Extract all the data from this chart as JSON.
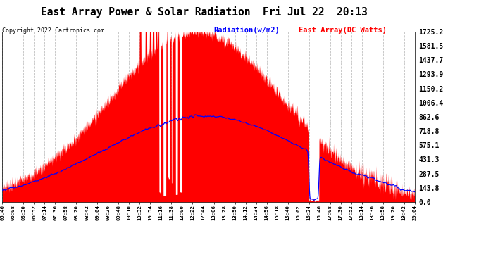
{
  "title": "East Array Power & Solar Radiation  Fri Jul 22  20:13",
  "copyright": "Copyright 2022 Cartronics.com",
  "legend_radiation": "Radiation(w/m2)",
  "legend_east": "East Array(DC Watts)",
  "yticks": [
    0.0,
    143.8,
    287.5,
    431.3,
    575.1,
    718.8,
    862.6,
    1006.4,
    1150.2,
    1293.9,
    1437.7,
    1581.5,
    1725.2
  ],
  "ymax": 1725.2,
  "ymin": 0.0,
  "bg_color": "#ffffff",
  "plot_bg_color": "#ffffff",
  "grid_color": "#c0c0c0",
  "radiation_color": "#0000ff",
  "east_fill_color": "#ff0000",
  "title_color": "#000000",
  "copyright_color": "#000000",
  "xtick_labels": [
    "05:46",
    "06:08",
    "06:30",
    "06:52",
    "07:14",
    "07:36",
    "07:58",
    "08:20",
    "08:42",
    "09:04",
    "09:26",
    "09:48",
    "10:10",
    "10:32",
    "10:54",
    "11:16",
    "11:38",
    "12:00",
    "12:22",
    "12:44",
    "13:06",
    "13:28",
    "13:50",
    "14:12",
    "14:34",
    "14:56",
    "15:18",
    "15:40",
    "16:02",
    "16:24",
    "16:46",
    "17:08",
    "17:30",
    "17:52",
    "18:14",
    "18:36",
    "18:58",
    "19:20",
    "19:42",
    "20:04"
  ],
  "xtick_start_h": 5.767,
  "xtick_end_h": 20.067,
  "peak_east": 1725.0,
  "peak_radiation": 870.0,
  "peak_time_east": 12.5,
  "peak_time_radiation": 12.8,
  "sigma_east": 3.0,
  "sigma_radiation": 3.5,
  "drop_time": 16.4,
  "drop_end": 16.75
}
